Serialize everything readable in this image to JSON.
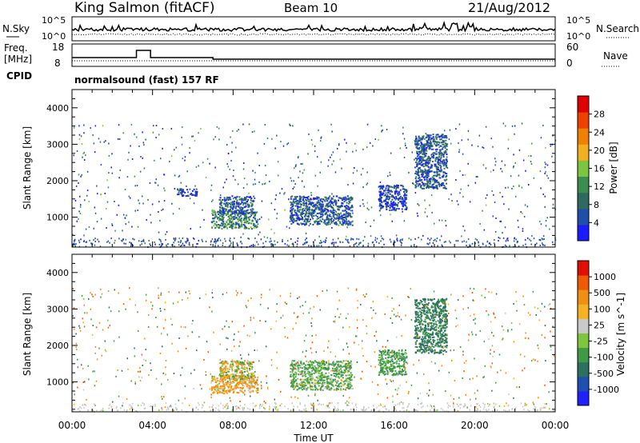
{
  "header": {
    "station": "King Salmon (fitACF)",
    "beam": "Beam 10",
    "date": "21/Aug/2012"
  },
  "noise_panel": {
    "left_label": "N.Sky",
    "right_label": "N.Search",
    "left_ticks": [
      "10^5",
      "10^0"
    ],
    "right_ticks": [
      "10^5",
      "10^0"
    ]
  },
  "freq_panel": {
    "left_label_line1": "Freq.",
    "left_label_line2": "[MHz]",
    "right_label": "Nave",
    "left_ticks": [
      "18",
      "8"
    ],
    "right_ticks": [
      "60",
      "0"
    ],
    "cpid_label": "CPID"
  },
  "mode_text": "normalsound (fast) 157 RF",
  "colors": {
    "power_scale": [
      "#1b1bff",
      "#1f4fa8",
      "#2f6a5f",
      "#3c8c50",
      "#7cc540",
      "#f0b020",
      "#f08000",
      "#f04000",
      "#e00000"
    ],
    "velocity_scale": [
      "#2020ff",
      "#1f4fb0",
      "#2c7060",
      "#3f9a45",
      "#7ec63e",
      "#c8c8c8",
      "#f5b222",
      "#f09010",
      "#f05a00",
      "#e01000"
    ]
  },
  "chart_data": [
    {
      "type": "heatmap",
      "name": "power",
      "ylabel": "Slant Range [km]",
      "yticks": [
        1000,
        2000,
        3000,
        4000
      ],
      "ylim": [
        180,
        4500
      ],
      "xlim": [
        0,
        24
      ],
      "colorbar_label": "Power [dB]",
      "colorbar_ticks": [
        "4",
        "8",
        "12",
        "16",
        "20",
        "24",
        "28"
      ],
      "colorbar_range": [
        0,
        30
      ],
      "scatter_regions": [
        {
          "t_start": 6.9,
          "t_end": 9.2,
          "r_start": 700,
          "r_end": 1200,
          "level": 10
        },
        {
          "t_start": 7.3,
          "t_end": 9.0,
          "r_start": 1100,
          "r_end": 1600,
          "level": 6
        },
        {
          "t_start": 10.8,
          "t_end": 13.9,
          "r_start": 800,
          "r_end": 1600,
          "level": 6
        },
        {
          "t_start": 15.2,
          "t_end": 16.6,
          "r_start": 1200,
          "r_end": 1900,
          "level": 4
        },
        {
          "t_start": 5.2,
          "t_end": 6.2,
          "r_start": 1600,
          "r_end": 1800,
          "level": 4
        },
        {
          "t_start": 17.0,
          "t_end": 18.6,
          "r_start": 1800,
          "r_end": 3300,
          "level": 6
        }
      ]
    },
    {
      "type": "heatmap",
      "name": "velocity",
      "ylabel": "Slant Range [km]",
      "yticks": [
        1000,
        2000,
        3000,
        4000
      ],
      "ylim": [
        180,
        4500
      ],
      "xlim": [
        0,
        24
      ],
      "xticks": [
        "00:00",
        "04:00",
        "08:00",
        "12:00",
        "16:00",
        "20:00",
        "00:00"
      ],
      "xlabel": "Time UT",
      "colorbar_label": "Velocity [m s^-1]",
      "colorbar_ticks": [
        "-1000",
        "-500",
        "-100",
        "-25",
        "25",
        "100",
        "500",
        "1000"
      ],
      "colorbar_range": [
        -1000,
        1000
      ],
      "scatter_regions": [
        {
          "t_start": 6.9,
          "t_end": 9.2,
          "r_start": 700,
          "r_end": 1200,
          "velocity": -200
        },
        {
          "t_start": 7.3,
          "t_end": 9.0,
          "r_start": 1100,
          "r_end": 1600,
          "velocity": 0
        },
        {
          "t_start": 10.8,
          "t_end": 13.9,
          "r_start": 800,
          "r_end": 1600,
          "velocity": 200
        },
        {
          "t_start": 15.2,
          "t_end": 16.6,
          "r_start": 1200,
          "r_end": 1900,
          "velocity": 300
        },
        {
          "t_start": 17.0,
          "t_end": 18.6,
          "r_start": 1800,
          "r_end": 3300,
          "velocity": 600
        }
      ]
    }
  ]
}
